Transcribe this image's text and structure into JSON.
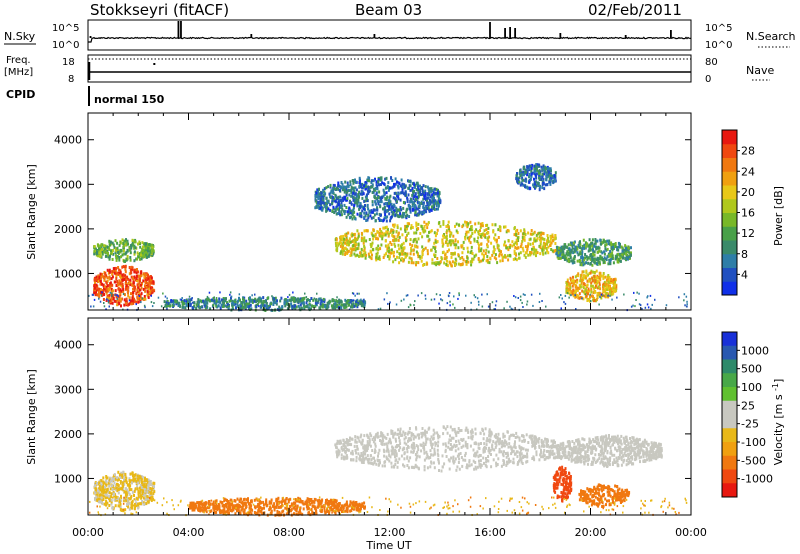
{
  "header": {
    "station": "Stokkseyri (fitACF)",
    "beam": "Beam 03",
    "date": "02/Feb/2011"
  },
  "nsky": {
    "label": "N.Sky",
    "tick_top": "10^5",
    "tick_bottom": "10^0",
    "right_label": "N.Search",
    "right_tick_top": "10^5",
    "right_tick_bottom": "10^0"
  },
  "freq": {
    "label_line1": "Freq.",
    "label_line2": "[MHz]",
    "tick_top": "18",
    "tick_bottom": "8",
    "right_label": "Nave",
    "right_tick_top": "80",
    "right_tick_bottom": "0"
  },
  "cpid": {
    "label": "CPID",
    "value": "normal 150"
  },
  "power_panel": {
    "ylabel": "Slant Range [km]",
    "yticks": [
      "1000",
      "2000",
      "3000",
      "4000"
    ],
    "colorbar": {
      "label": "Power [dB]",
      "ticks": [
        "4",
        "8",
        "12",
        "16",
        "20",
        "24",
        "28"
      ],
      "colors": [
        "#1030e8",
        "#2050c0",
        "#2e7ea8",
        "#3a8a6a",
        "#48a048",
        "#78b828",
        "#b0c81c",
        "#e8c818",
        "#f0a010",
        "#f07810",
        "#f04810",
        "#e81810"
      ]
    }
  },
  "velocity_panel": {
    "ylabel": "Slant Range [km]",
    "yticks": [
      "1000",
      "2000",
      "3000",
      "4000"
    ],
    "colorbar": {
      "label": "Velocity [m s^-1]",
      "ticks": [
        "1000",
        "500",
        "100",
        "25",
        "-25",
        "-100",
        "-500",
        "-1000"
      ],
      "colors": [
        "#1830d8",
        "#2858b0",
        "#2e8a6a",
        "#48a848",
        "#60c030",
        "#c8c8c0",
        "#c8c8c0",
        "#e8b818",
        "#f0a010",
        "#f07810",
        "#f04810",
        "#e81810"
      ]
    }
  },
  "xaxis": {
    "label": "Time UT",
    "ticks": [
      "00:00",
      "04:00",
      "08:00",
      "12:00",
      "16:00",
      "20:00",
      "00:00"
    ]
  },
  "chart_data": {
    "type": "heatmap",
    "title": "Stokkseyri (fitACF) Beam 03 02/Feb/2011",
    "xlabel": "Time UT",
    "ylabel": "Slant Range [km]",
    "xlim": [
      "00:00",
      "24:00"
    ],
    "ylim": [
      180,
      4600
    ],
    "power_scale": [
      0,
      30
    ],
    "velocity_scale": [
      -1000,
      1000
    ],
    "power_regions": [
      {
        "t": [
          0.2,
          2.6
        ],
        "r": [
          300,
          1200
        ],
        "power": 26
      },
      {
        "t": [
          0.2,
          2.6
        ],
        "r": [
          1300,
          1800
        ],
        "power": 12
      },
      {
        "t": [
          9.8,
          18.6
        ],
        "r": [
          1200,
          2200
        ],
        "power": 18
      },
      {
        "t": [
          18.6,
          21.6
        ],
        "r": [
          1200,
          1800
        ],
        "power": 10
      },
      {
        "t": [
          9.0,
          14.0
        ],
        "r": [
          2200,
          3200
        ],
        "power": 6
      },
      {
        "t": [
          17.0,
          18.6
        ],
        "r": [
          2900,
          3500
        ],
        "power": 6
      },
      {
        "t": [
          19.0,
          21.0
        ],
        "r": [
          400,
          1100
        ],
        "power": 20
      },
      {
        "t": [
          3.0,
          11.0
        ],
        "r": [
          200,
          500
        ],
        "power": 8
      }
    ],
    "velocity_regions": [
      {
        "t": [
          0.2,
          2.6
        ],
        "r": [
          300,
          1200
        ],
        "velocity": -50
      },
      {
        "t": [
          9.8,
          18.6
        ],
        "r": [
          1200,
          2200
        ],
        "velocity": 0
      },
      {
        "t": [
          18.6,
          22.8
        ],
        "r": [
          1300,
          2000
        ],
        "velocity": 0
      },
      {
        "t": [
          18.5,
          19.2
        ],
        "r": [
          500,
          1300
        ],
        "velocity": -600
      },
      {
        "t": [
          19.5,
          21.5
        ],
        "r": [
          400,
          900
        ],
        "velocity": -300
      },
      {
        "t": [
          4.0,
          11.0
        ],
        "r": [
          200,
          600
        ],
        "velocity": -150
      }
    ]
  }
}
